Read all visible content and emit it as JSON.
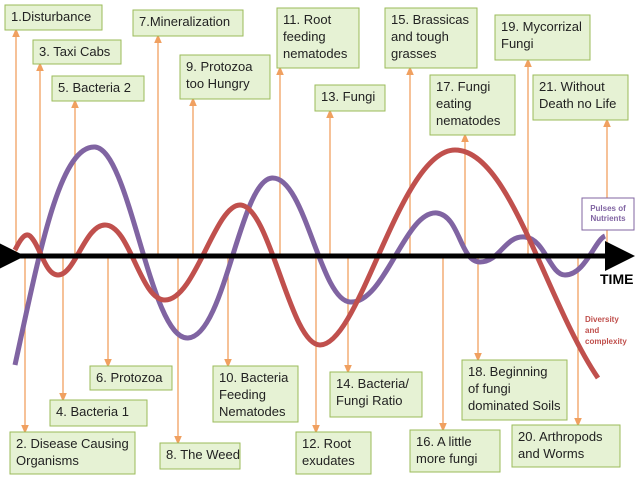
{
  "boxes": [
    {
      "lines": [
        "1.Disturbance"
      ]
    },
    {
      "lines": [
        "2. Disease Causing",
        "Organisms"
      ]
    },
    {
      "lines": [
        "3. Taxi Cabs"
      ]
    },
    {
      "lines": [
        "4. Bacteria 1"
      ]
    },
    {
      "lines": [
        "5. Bacteria 2"
      ]
    },
    {
      "lines": [
        "6. Protozoa"
      ]
    },
    {
      "lines": [
        "7.Mineralization"
      ]
    },
    {
      "lines": [
        "8. The Weed"
      ]
    },
    {
      "lines": [
        "9. Protozoa",
        "too Hungry"
      ]
    },
    {
      "lines": [
        "10. Bacteria",
        "Feeding",
        "Nematodes"
      ]
    },
    {
      "lines": [
        "11. Root",
        "feeding",
        "nematodes"
      ]
    },
    {
      "lines": [
        "12. Root",
        "exudates"
      ]
    },
    {
      "lines": [
        "13. Fungi"
      ]
    },
    {
      "lines": [
        "14. Bacteria/",
        "Fungi Ratio"
      ]
    },
    {
      "lines": [
        "15. Brassicas",
        "and tough",
        "grasses"
      ]
    },
    {
      "lines": [
        "16. A little",
        "more fungi"
      ]
    },
    {
      "lines": [
        "17. Fungi",
        "eating",
        "nematodes"
      ]
    },
    {
      "lines": [
        "18. Beginning",
        "of fungi",
        "dominated Soils"
      ]
    },
    {
      "lines": [
        "19. Mycorrizal",
        "Fungi"
      ]
    },
    {
      "lines": [
        "20. Arthropods",
        "and Worms"
      ]
    },
    {
      "lines": [
        "21. Without",
        "Death no Life"
      ]
    }
  ],
  "axis_label": "TIME",
  "purple_label": [
    "Pulses of",
    "Nutrients"
  ],
  "red_label": [
    "Diversity",
    "and",
    "complexity"
  ]
}
